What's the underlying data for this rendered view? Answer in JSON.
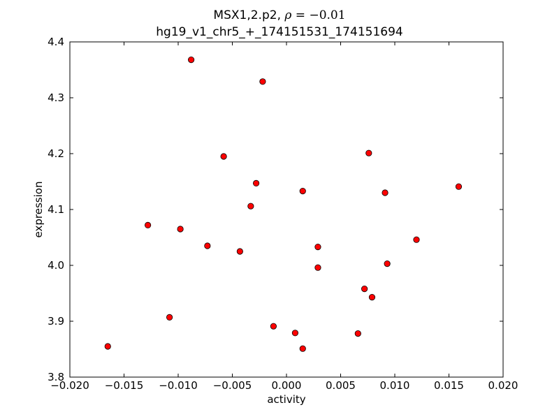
{
  "chart_data": {
    "type": "scatter",
    "title_line1_prefix": "MSX1,2.p2, ",
    "title_rho_symbol": "ρ",
    "title_rho_equals": " = ",
    "title_rho_value": "−0.01",
    "title_line2": "hg19_v1_chr5_+_174151531_174151694",
    "xlabel": "activity",
    "ylabel": "expression",
    "xlim": [
      -0.02,
      0.02
    ],
    "ylim": [
      3.8,
      4.4
    ],
    "xticks": [
      -0.02,
      -0.015,
      -0.01,
      -0.005,
      0.0,
      0.005,
      0.01,
      0.015,
      0.02
    ],
    "xtick_labels": [
      "−0.020",
      "−0.015",
      "−0.010",
      "−0.005",
      "0.000",
      "0.005",
      "0.010",
      "0.015",
      "0.020"
    ],
    "yticks": [
      3.8,
      3.9,
      4.0,
      4.1,
      4.2,
      4.3,
      4.4
    ],
    "ytick_labels": [
      "3.8",
      "3.9",
      "4.0",
      "4.1",
      "4.2",
      "4.3",
      "4.4"
    ],
    "grid": false,
    "marker_color": "#ff0000",
    "marker_edge_color": "#000000",
    "points": [
      {
        "x": -0.0165,
        "y": 3.855
      },
      {
        "x": -0.0128,
        "y": 4.072
      },
      {
        "x": -0.0108,
        "y": 3.907
      },
      {
        "x": -0.0098,
        "y": 4.065
      },
      {
        "x": -0.0088,
        "y": 4.368
      },
      {
        "x": -0.0073,
        "y": 4.035
      },
      {
        "x": -0.0058,
        "y": 4.195
      },
      {
        "x": -0.0043,
        "y": 4.025
      },
      {
        "x": -0.0033,
        "y": 4.106
      },
      {
        "x": -0.0028,
        "y": 4.147
      },
      {
        "x": -0.0022,
        "y": 4.329
      },
      {
        "x": -0.0012,
        "y": 3.891
      },
      {
        "x": 0.0008,
        "y": 3.879
      },
      {
        "x": 0.0015,
        "y": 4.133
      },
      {
        "x": 0.0015,
        "y": 3.851
      },
      {
        "x": 0.0029,
        "y": 4.033
      },
      {
        "x": 0.0029,
        "y": 3.996
      },
      {
        "x": 0.0066,
        "y": 3.878
      },
      {
        "x": 0.0072,
        "y": 3.958
      },
      {
        "x": 0.0076,
        "y": 4.201
      },
      {
        "x": 0.0079,
        "y": 3.943
      },
      {
        "x": 0.0091,
        "y": 4.13
      },
      {
        "x": 0.0093,
        "y": 4.003
      },
      {
        "x": 0.012,
        "y": 4.046
      },
      {
        "x": 0.0159,
        "y": 4.141
      }
    ]
  }
}
